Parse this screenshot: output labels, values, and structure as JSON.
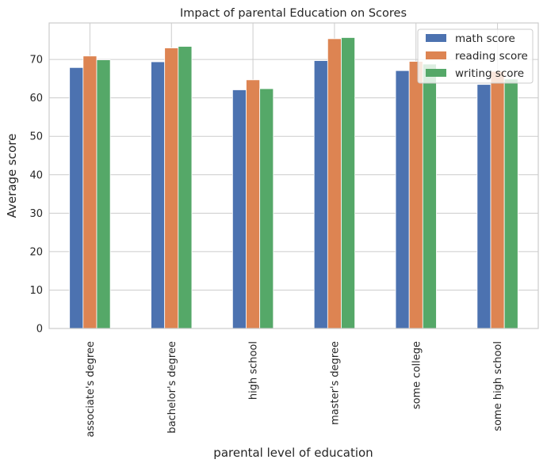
{
  "chart_data": {
    "type": "bar",
    "title": "Impact of parental Education on Scores",
    "xlabel": "parental level of education",
    "ylabel": "Average score",
    "categories": [
      "associate's degree",
      "bachelor's degree",
      "high school",
      "master's degree",
      "some college",
      "some high school"
    ],
    "series": [
      {
        "name": "math score",
        "color": "#4c72b0",
        "values": [
          67.9,
          69.4,
          62.1,
          69.7,
          67.1,
          63.5
        ]
      },
      {
        "name": "reading score",
        "color": "#dd8452",
        "values": [
          70.9,
          73.0,
          64.7,
          75.4,
          69.5,
          66.9
        ]
      },
      {
        "name": "writing score",
        "color": "#55a868",
        "values": [
          69.9,
          73.4,
          62.4,
          75.7,
          68.8,
          64.9
        ]
      }
    ],
    "ylim": [
      0,
      79.5
    ],
    "yticks": [
      0,
      10,
      20,
      30,
      40,
      50,
      60,
      70
    ],
    "grid": true,
    "legend_position": "top-right"
  }
}
